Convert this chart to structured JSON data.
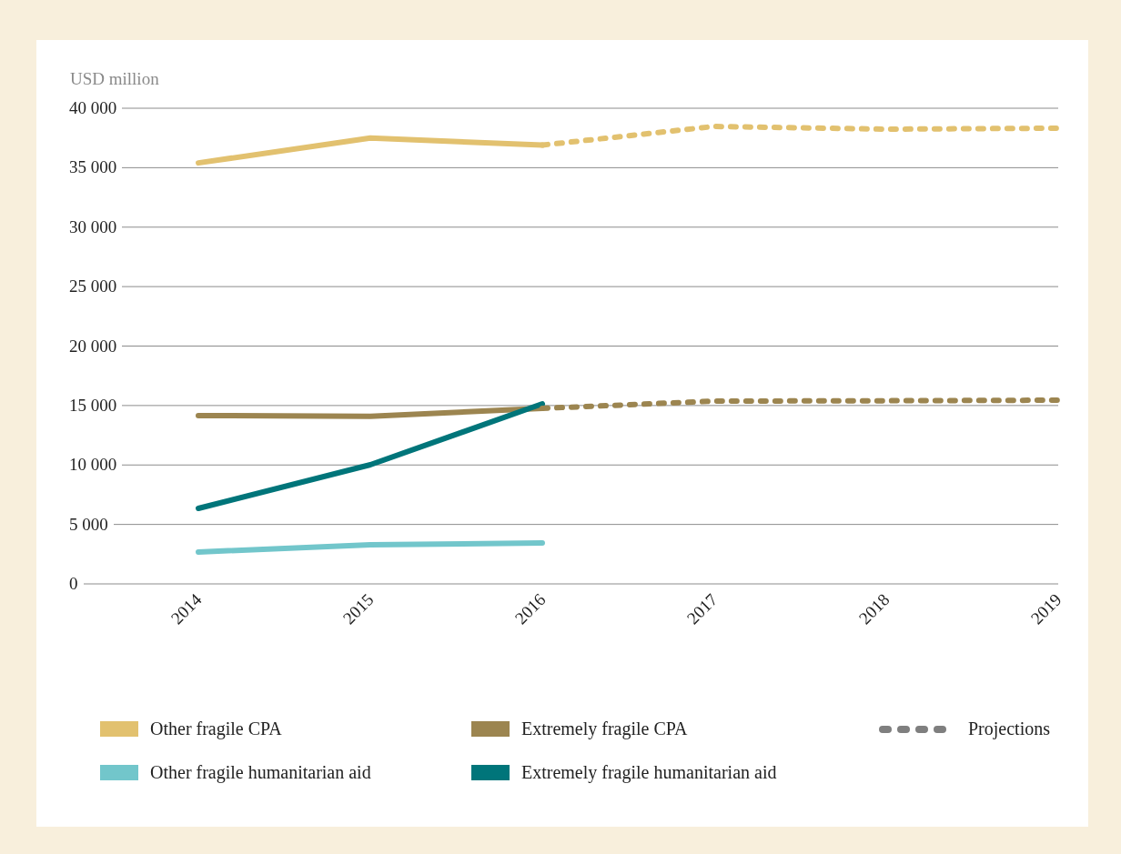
{
  "chart_data": {
    "type": "line",
    "ylabel": "USD million",
    "categories": [
      "2014",
      "2015",
      "2016",
      "2017",
      "2018",
      "2019"
    ],
    "series": [
      {
        "name": "Other fragile CPA",
        "color": "#e2c16f",
        "line_style": "solid",
        "values": [
          35400,
          37500,
          36900,
          null,
          null,
          null
        ]
      },
      {
        "name": "Extremely fragile CPA",
        "color": "#9c8550",
        "line_style": "solid",
        "values": [
          14150,
          14100,
          14760,
          null,
          null,
          null
        ]
      },
      {
        "name": "Other fragile humanitarian aid",
        "color": "#72c6cb",
        "line_style": "solid",
        "values": [
          2680,
          3290,
          3440,
          null,
          null,
          null
        ]
      },
      {
        "name": "Extremely fragile humanitarian aid",
        "color": "#00757a",
        "line_style": "solid",
        "values": [
          6350,
          10020,
          15140,
          null,
          null,
          null
        ]
      },
      {
        "color": "#e2c16f",
        "line_style": "dotted",
        "values": [
          null,
          null,
          36900,
          38470,
          38240,
          38320
        ]
      },
      {
        "color": "#9c8550",
        "line_style": "dotted",
        "values": [
          null,
          null,
          14760,
          15370,
          15400,
          15450
        ]
      }
    ],
    "ylim": [
      0,
      40000
    ],
    "yticks": [
      {
        "value": 0,
        "label": "0"
      },
      {
        "value": 5000,
        "label": "5 000"
      },
      {
        "value": 10000,
        "label": "10 000"
      },
      {
        "value": 15000,
        "label": "15 000"
      },
      {
        "value": 20000,
        "label": "20 000"
      },
      {
        "value": 25000,
        "label": "25 000"
      },
      {
        "value": 30000,
        "label": "30 000"
      },
      {
        "value": 35000,
        "label": "35 000"
      },
      {
        "value": 40000,
        "label": "40 000"
      }
    ],
    "grid": "y",
    "legend": "bottom",
    "marker": "none",
    "annotations": [
      "Projections"
    ]
  }
}
